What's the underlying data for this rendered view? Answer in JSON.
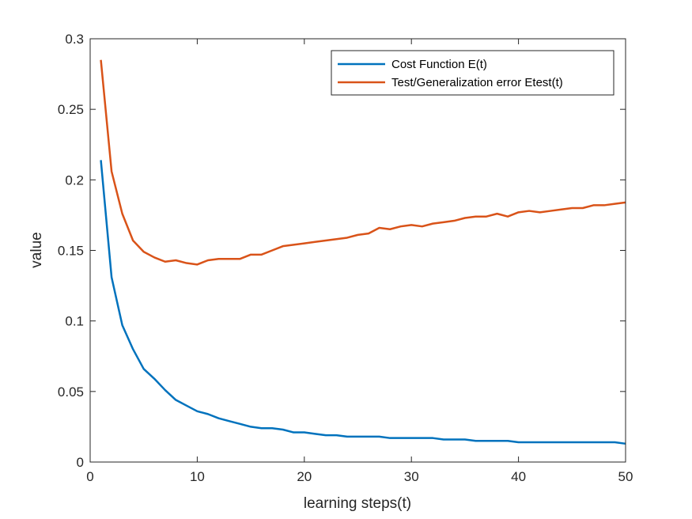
{
  "chart_data": {
    "type": "line",
    "xlabel": "learning steps(t)",
    "ylabel": "value",
    "xlim": [
      0,
      50
    ],
    "ylim": [
      0,
      0.3
    ],
    "xticks": [
      0,
      10,
      20,
      30,
      40,
      50
    ],
    "yticks": [
      0,
      0.05,
      0.1,
      0.15,
      0.2,
      0.25,
      0.3
    ],
    "xtick_labels": [
      "0",
      "10",
      "20",
      "30",
      "40",
      "50"
    ],
    "ytick_labels": [
      "0",
      "0.05",
      "0.1",
      "0.15",
      "0.2",
      "0.25",
      "0.3"
    ],
    "grid": false,
    "legend_position": "top-right",
    "x": [
      1,
      2,
      3,
      4,
      5,
      6,
      7,
      8,
      9,
      10,
      11,
      12,
      13,
      14,
      15,
      16,
      17,
      18,
      19,
      20,
      21,
      22,
      23,
      24,
      25,
      26,
      27,
      28,
      29,
      30,
      31,
      32,
      33,
      34,
      35,
      36,
      37,
      38,
      39,
      40,
      41,
      42,
      43,
      44,
      45,
      46,
      47,
      48,
      49,
      50
    ],
    "series": [
      {
        "name": "Cost Function E(t)",
        "color": "#0072BD",
        "values": [
          0.214,
          0.131,
          0.097,
          0.08,
          0.066,
          0.059,
          0.051,
          0.044,
          0.04,
          0.036,
          0.034,
          0.031,
          0.029,
          0.027,
          0.025,
          0.024,
          0.024,
          0.023,
          0.021,
          0.021,
          0.02,
          0.019,
          0.019,
          0.018,
          0.018,
          0.018,
          0.018,
          0.017,
          0.017,
          0.017,
          0.017,
          0.017,
          0.016,
          0.016,
          0.016,
          0.015,
          0.015,
          0.015,
          0.015,
          0.014,
          0.014,
          0.014,
          0.014,
          0.014,
          0.014,
          0.014,
          0.014,
          0.014,
          0.014,
          0.013
        ]
      },
      {
        "name": "Test/Generalization error Etest(t)",
        "color": "#D95319",
        "values": [
          0.285,
          0.206,
          0.176,
          0.157,
          0.149,
          0.145,
          0.142,
          0.143,
          0.141,
          0.14,
          0.143,
          0.144,
          0.144,
          0.144,
          0.147,
          0.147,
          0.15,
          0.153,
          0.154,
          0.155,
          0.156,
          0.157,
          0.158,
          0.159,
          0.161,
          0.162,
          0.166,
          0.165,
          0.167,
          0.168,
          0.167,
          0.169,
          0.17,
          0.171,
          0.173,
          0.174,
          0.174,
          0.176,
          0.174,
          0.177,
          0.178,
          0.177,
          0.178,
          0.179,
          0.18,
          0.18,
          0.182,
          0.182,
          0.183,
          0.184
        ]
      }
    ]
  }
}
